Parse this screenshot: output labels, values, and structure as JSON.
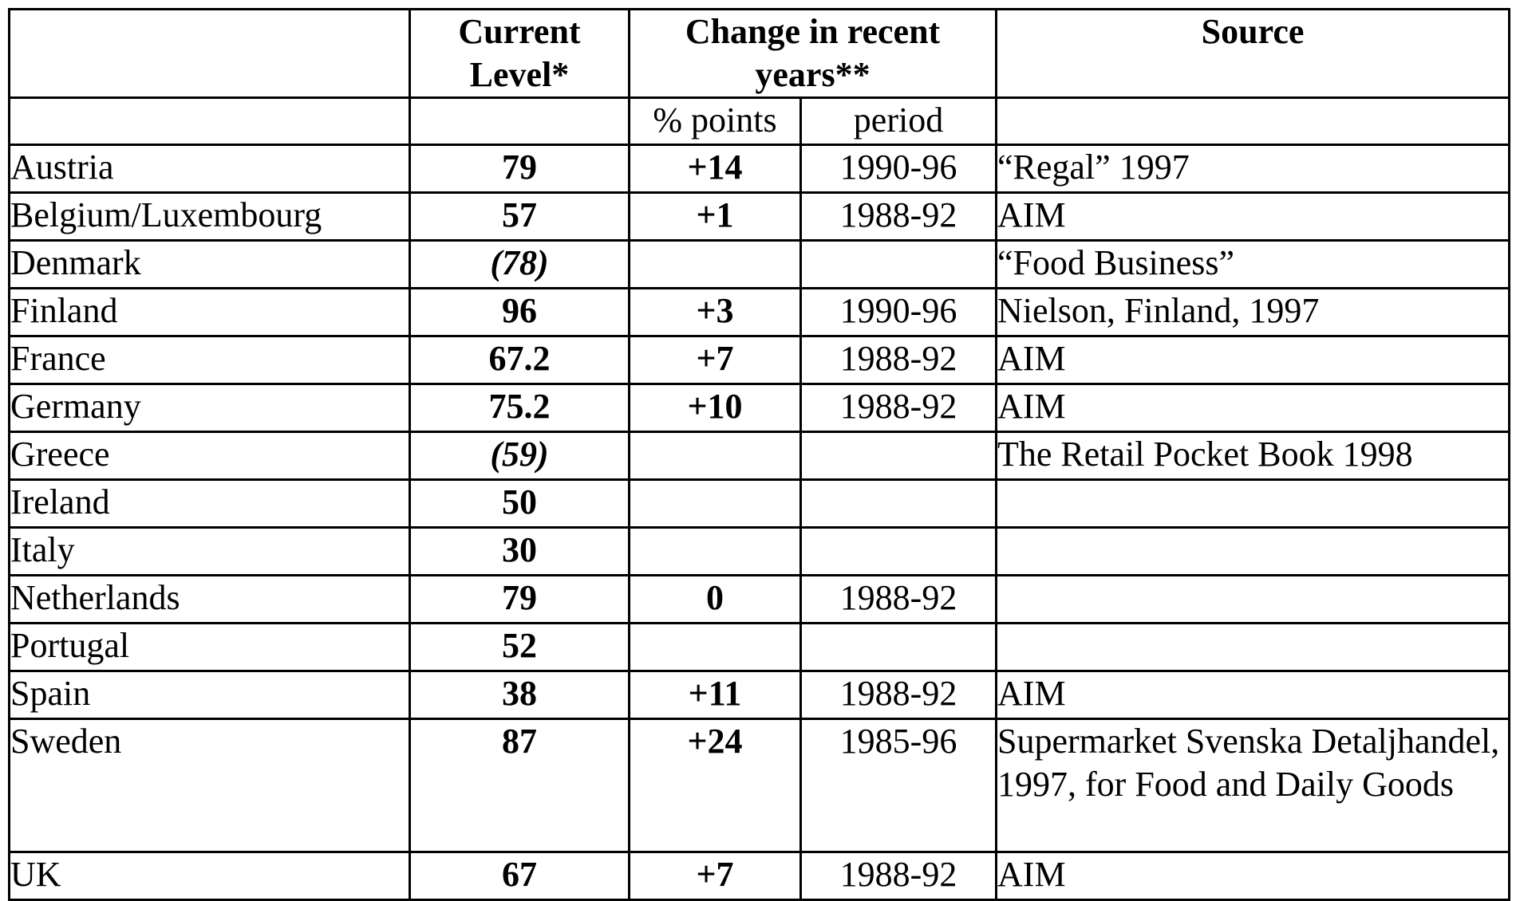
{
  "header": {
    "current_level": "Current Level*",
    "change": "Change in recent years**",
    "source": "Source",
    "pct_points": "% points",
    "period": "period"
  },
  "rows": [
    {
      "country": "Austria",
      "level": "79",
      "points": "+14",
      "period": "1990-96",
      "source": "“Regal” 1997"
    },
    {
      "country": "Belgium/Luxembourg",
      "level": "57",
      "points": "+1",
      "period": "1988-92",
      "source": "AIM"
    },
    {
      "country": "Denmark",
      "level": "(78)",
      "points": "",
      "period": "",
      "source": "“Food Business”"
    },
    {
      "country": "Finland",
      "level": "96",
      "points": "+3",
      "period": "1990-96",
      "source": "Nielson, Finland, 1997"
    },
    {
      "country": "France",
      "level": "67.2",
      "points": "+7",
      "period": "1988-92",
      "source": "AIM"
    },
    {
      "country": "Germany",
      "level": "75.2",
      "points": "+10",
      "period": "1988-92",
      "source": "AIM"
    },
    {
      "country": "Greece",
      "level": "(59)",
      "points": "",
      "period": "",
      "source": "The Retail Pocket Book 1998"
    },
    {
      "country": "Ireland",
      "level": "50",
      "points": "",
      "period": "",
      "source": ""
    },
    {
      "country": "Italy",
      "level": "30",
      "points": "",
      "period": "",
      "source": ""
    },
    {
      "country": "Netherlands",
      "level": "79",
      "points": "0",
      "period": "1988-92",
      "source": ""
    },
    {
      "country": "Portugal",
      "level": "52",
      "points": "",
      "period": "",
      "source": ""
    },
    {
      "country": "Spain",
      "level": "38",
      "points": "+11",
      "period": "1988-92",
      "source": "AIM"
    },
    {
      "country": "Sweden",
      "level": "87",
      "points": "+24",
      "period": "1985-96",
      "source": "Supermarket Svenska Detaljhandel, 1997, for Food and Daily Goods"
    },
    {
      "country": "UK",
      "level": "67",
      "points": "+7",
      "period": "1988-92",
      "source": "AIM"
    }
  ]
}
